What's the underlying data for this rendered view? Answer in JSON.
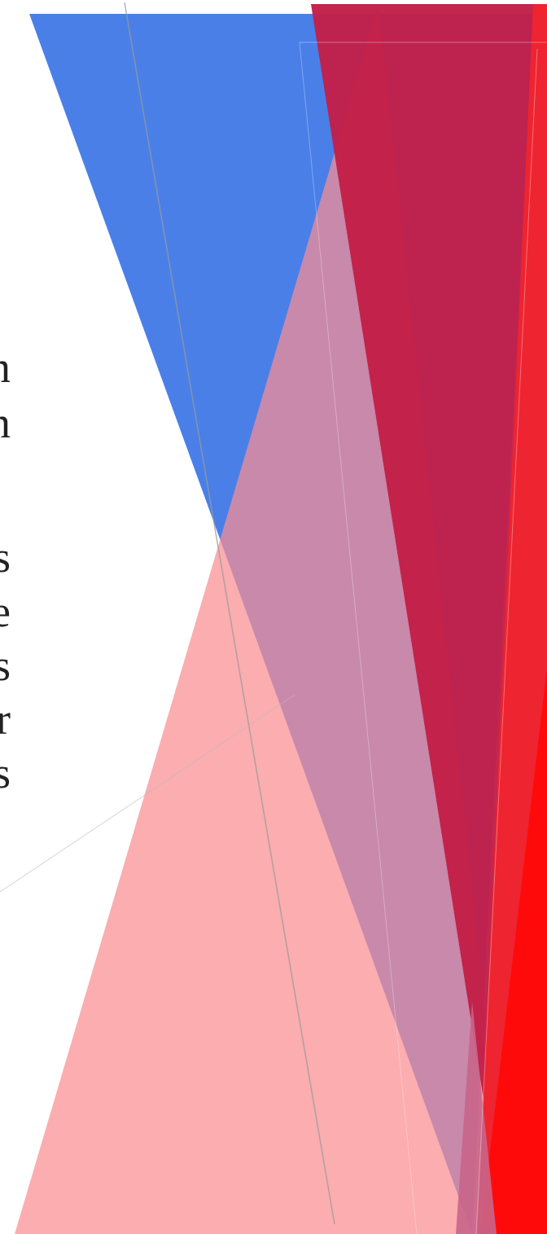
{
  "body": {
    "line_endings": [
      "n",
      "n",
      "s",
      "e",
      "s",
      "r",
      "s"
    ]
  }
}
